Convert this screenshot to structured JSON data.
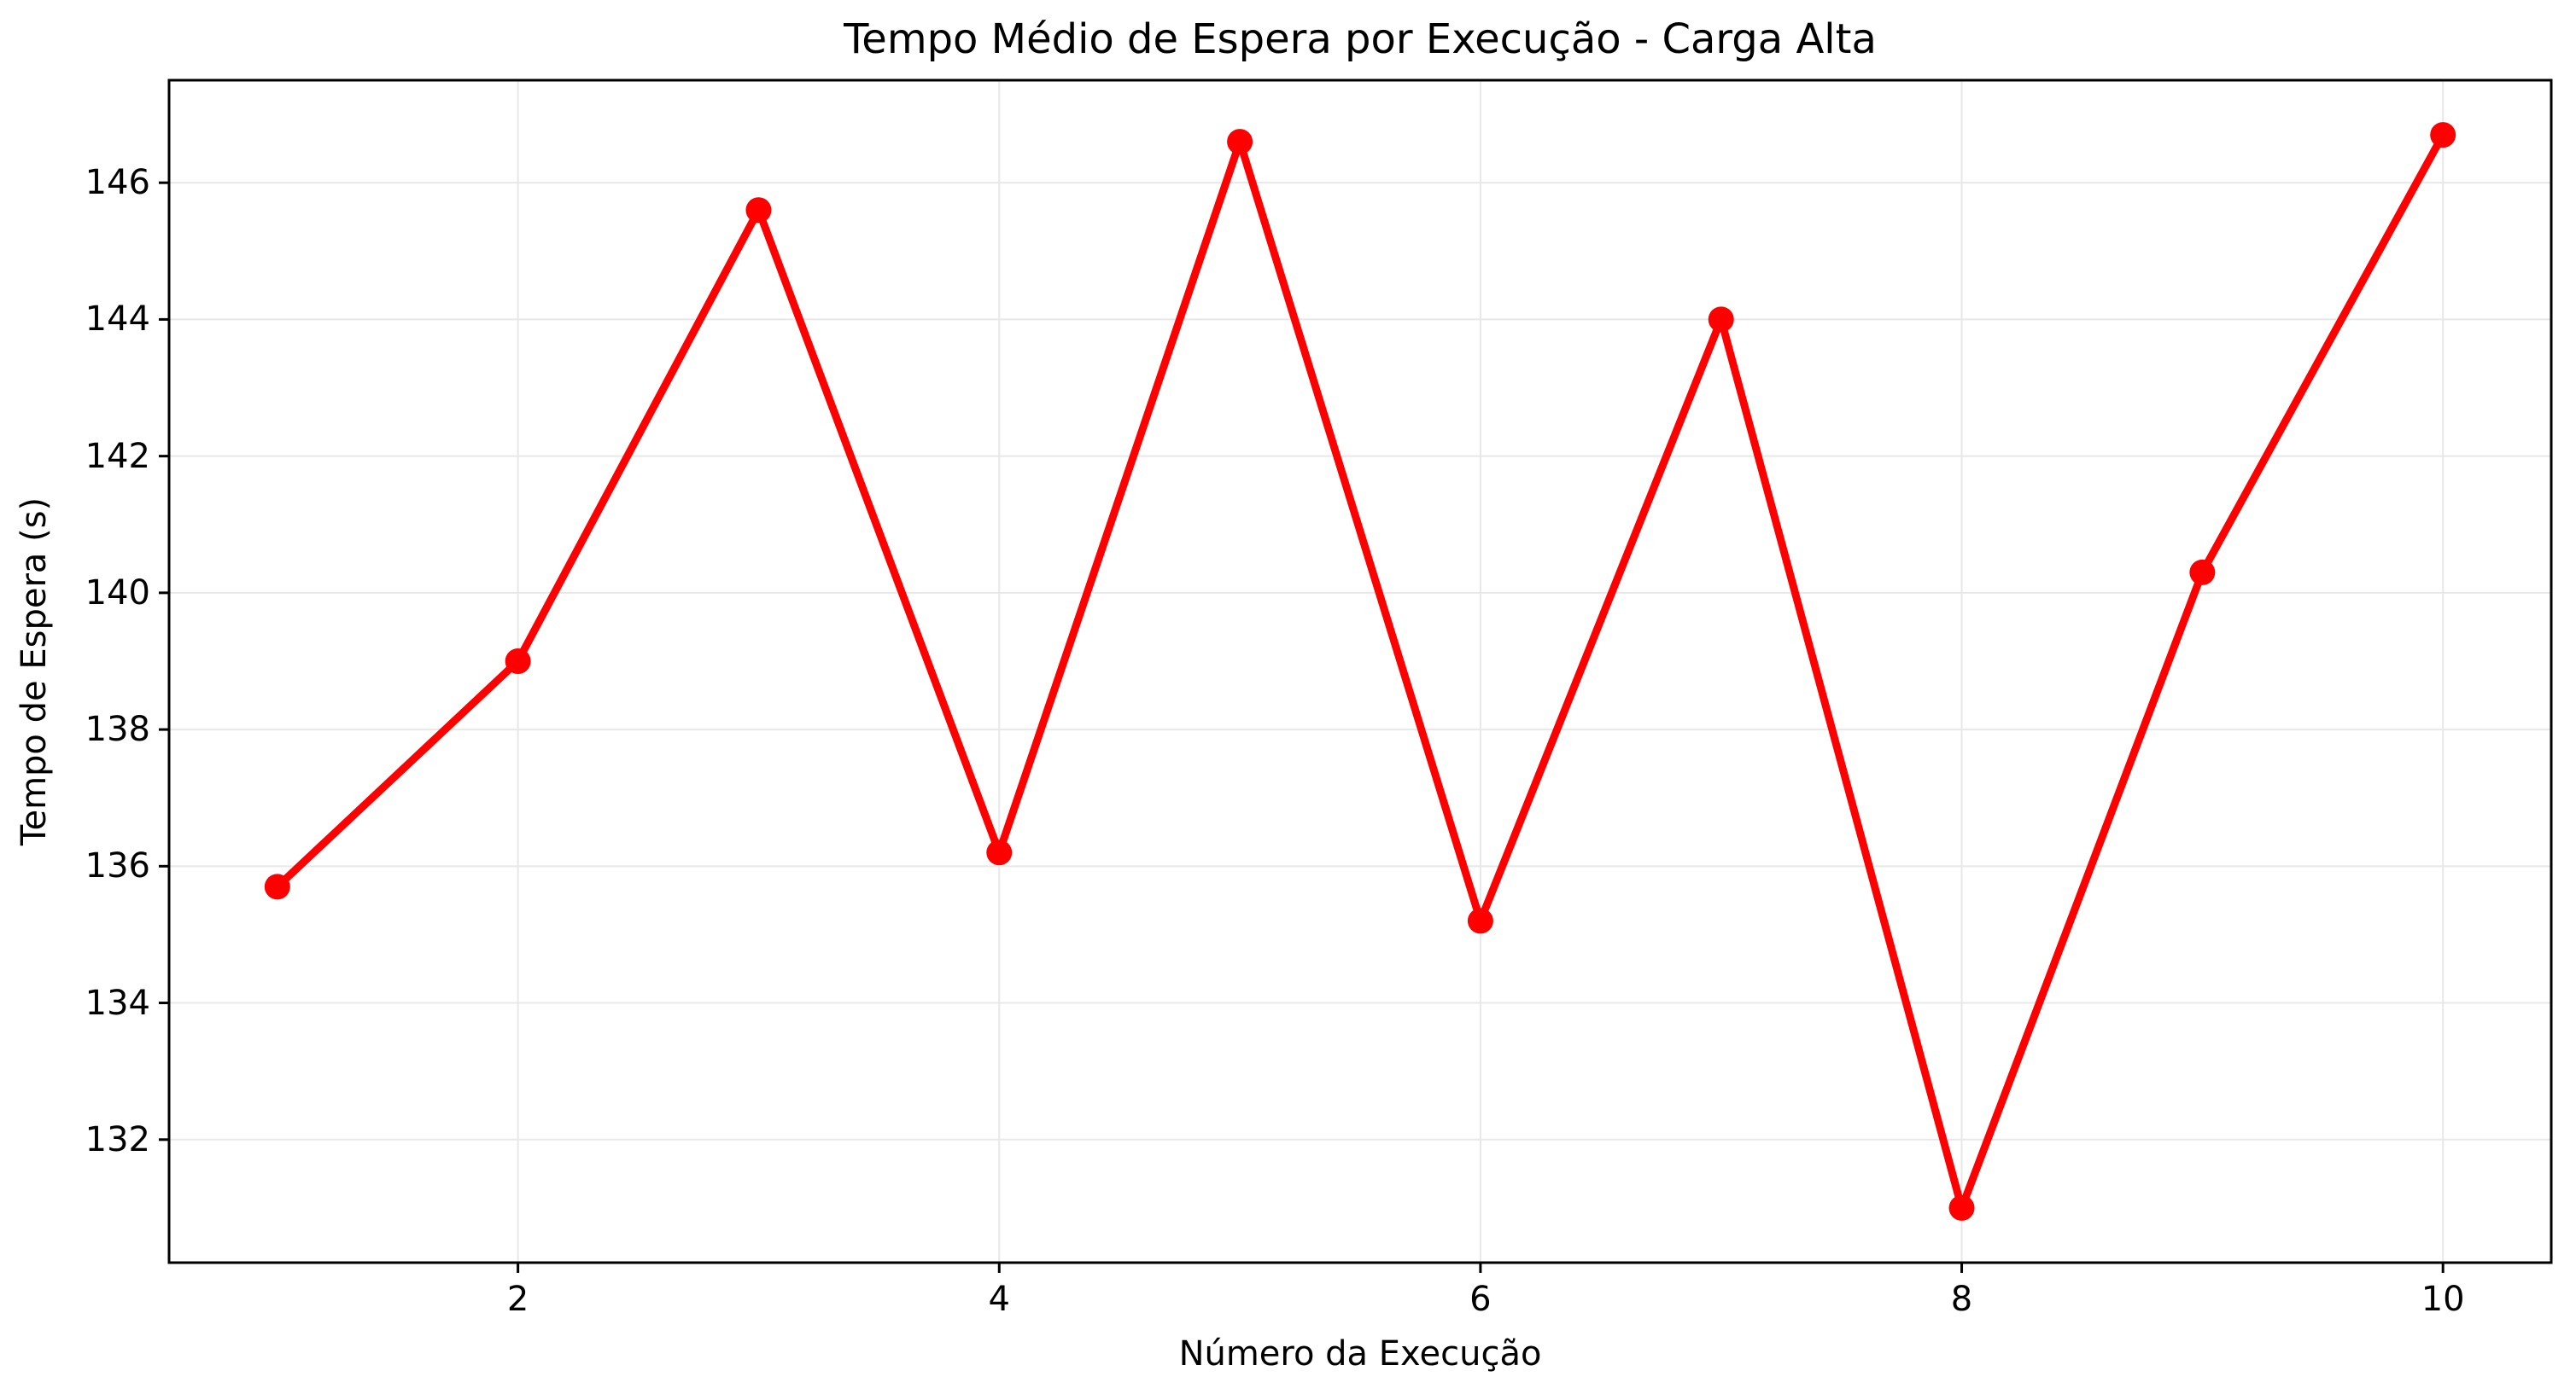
{
  "chart_data": {
    "type": "line",
    "title": "Tempo Médio de Espera por Execução - Carga Alta",
    "xlabel": "Número da Execução",
    "ylabel": "Tempo de Espera (s)",
    "x": [
      1,
      2,
      3,
      4,
      5,
      6,
      7,
      8,
      9,
      10
    ],
    "series": [
      {
        "name": "Tempo Médio de Espera",
        "color": "#ff0000",
        "marker": "circle",
        "values": [
          135.7,
          139.0,
          145.6,
          136.2,
          146.6,
          135.2,
          144.0,
          131.0,
          140.3,
          146.7
        ]
      }
    ],
    "xticks": [
      2,
      4,
      6,
      8,
      10
    ],
    "yticks": [
      132,
      134,
      136,
      138,
      140,
      142,
      144,
      146
    ],
    "xlim": [
      0.55,
      10.45
    ],
    "ylim": [
      130.2,
      147.5
    ],
    "grid": true,
    "grid_color": "#e8e8e8",
    "axis_color": "#000000",
    "background": "#ffffff",
    "legend_position": "none"
  }
}
